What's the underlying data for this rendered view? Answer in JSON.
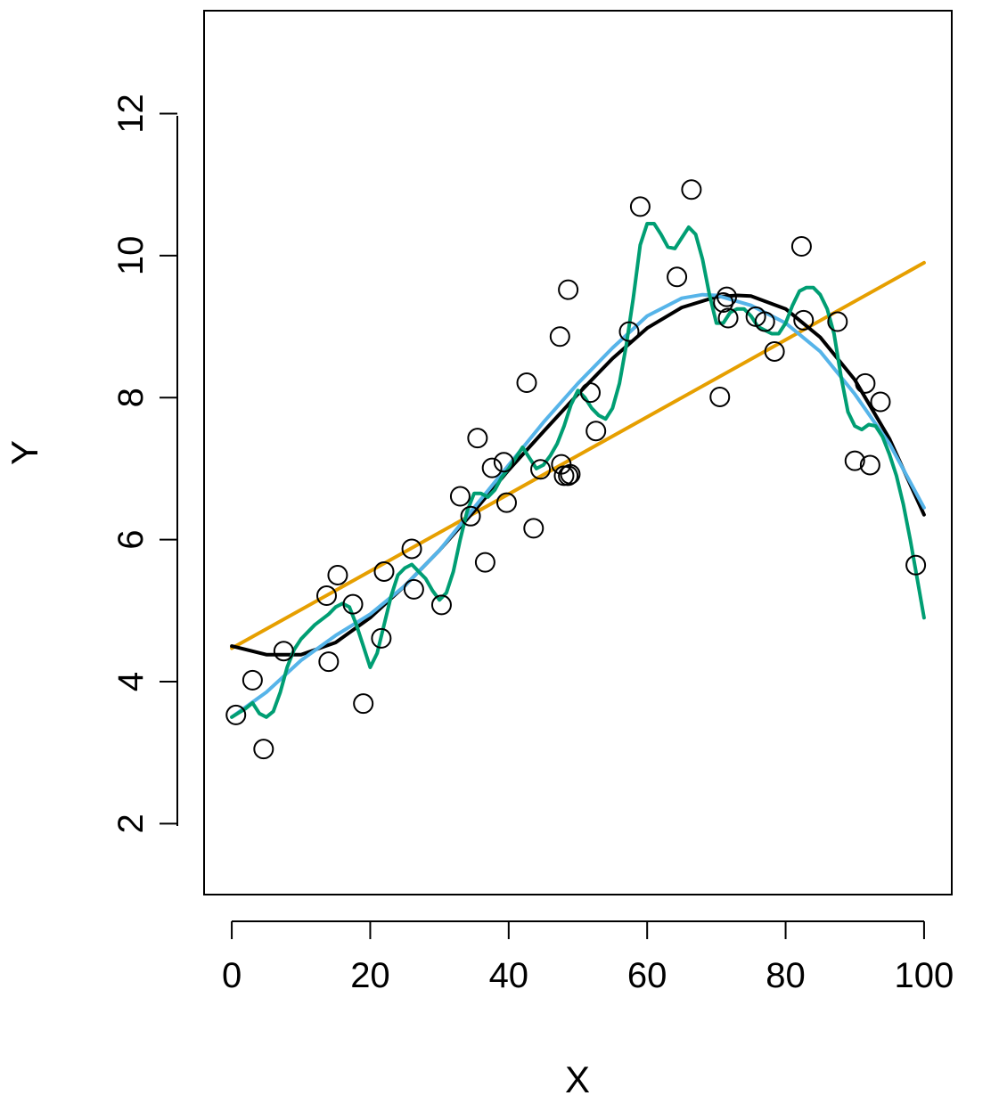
{
  "chart_data": {
    "type": "scatter",
    "title": "",
    "xlabel": "X",
    "ylabel": "Y",
    "xlim": [
      -4,
      104
    ],
    "ylim": [
      1,
      13.45
    ],
    "x_ticks": [
      0,
      20,
      40,
      60,
      80,
      100
    ],
    "x_tick_labels": [
      "0",
      "20",
      "40",
      "60",
      "80",
      "100"
    ],
    "y_ticks": [
      2,
      4,
      6,
      8,
      10,
      12
    ],
    "y_tick_labels": [
      "2",
      "4",
      "6",
      "8",
      "10",
      "12"
    ],
    "grid": false,
    "legend": "none",
    "points": {
      "x": [
        0.6,
        3.0,
        4.6,
        7.5,
        13.7,
        14.0,
        15.3,
        17.5,
        19.0,
        21.6,
        22.0,
        26.0,
        26.3,
        30.3,
        33.0,
        34.5,
        35.5,
        36.6,
        37.6,
        39.3,
        39.7,
        42.6,
        43.6,
        44.6,
        47.4,
        47.6,
        48.0,
        48.6,
        48.6,
        48.9,
        51.8,
        52.6,
        57.4,
        59.0,
        64.3,
        66.4,
        70.5,
        71.0,
        71.5,
        71.7,
        75.7,
        77.0,
        78.4,
        82.3,
        82.6,
        87.5,
        90.0,
        91.5,
        92.2,
        93.7,
        98.8
      ],
      "y": [
        3.53,
        4.02,
        3.05,
        4.43,
        5.21,
        4.28,
        5.5,
        5.09,
        3.69,
        4.61,
        5.55,
        5.87,
        5.3,
        5.08,
        6.61,
        6.33,
        7.43,
        5.68,
        7.01,
        7.09,
        6.52,
        8.21,
        6.16,
        6.99,
        8.86,
        7.06,
        6.9,
        6.9,
        9.52,
        6.92,
        8.07,
        7.53,
        8.93,
        10.69,
        9.7,
        10.93,
        8.01,
        9.34,
        9.42,
        9.12,
        9.14,
        9.07,
        8.65,
        10.13,
        9.09,
        9.07,
        7.11,
        8.2,
        7.05,
        7.94,
        5.64
      ]
    },
    "series": [
      {
        "kind": "line",
        "color": "#E69F00",
        "x": [
          0,
          100
        ],
        "y": [
          4.47,
          9.9
        ]
      },
      {
        "kind": "line",
        "color": "#000000",
        "x": [
          0,
          5,
          10,
          15,
          20,
          25,
          30,
          35,
          40,
          45,
          50,
          55,
          60,
          65,
          70,
          73,
          75,
          80,
          85,
          90,
          95,
          100
        ],
        "y": [
          4.5,
          4.38,
          4.38,
          4.55,
          4.9,
          5.35,
          5.85,
          6.4,
          6.98,
          7.52,
          8.05,
          8.55,
          8.98,
          9.27,
          9.42,
          9.44,
          9.43,
          9.25,
          8.85,
          8.25,
          7.42,
          6.35
        ]
      },
      {
        "kind": "line",
        "color": "#56B4E9",
        "x": [
          0,
          5,
          10,
          15,
          20,
          25,
          30,
          35,
          40,
          45,
          50,
          55,
          60,
          65,
          68,
          70,
          75,
          80,
          85,
          90,
          95,
          100
        ],
        "y": [
          3.5,
          3.85,
          4.3,
          4.65,
          4.95,
          5.35,
          5.85,
          6.45,
          7.05,
          7.65,
          8.2,
          8.7,
          9.15,
          9.4,
          9.45,
          9.44,
          9.3,
          9.05,
          8.65,
          8.05,
          7.35,
          6.45
        ]
      },
      {
        "kind": "line",
        "color": "#009E73",
        "x": [
          0,
          2,
          3,
          4,
          5,
          6,
          7,
          8,
          9,
          10,
          12,
          14,
          15,
          16,
          17,
          18,
          19,
          20,
          21,
          22,
          23,
          24,
          25,
          26,
          27,
          28,
          29,
          30,
          31,
          32,
          33,
          34,
          35,
          36,
          37,
          38,
          39,
          40,
          41,
          42,
          43,
          44,
          45,
          46,
          47,
          48,
          49,
          50,
          51,
          52,
          53,
          54,
          55,
          56,
          57,
          58,
          59,
          60,
          61,
          62,
          63,
          64,
          65,
          66,
          67,
          68,
          69,
          70,
          71,
          72,
          73,
          74,
          75,
          76,
          77,
          78,
          79,
          80,
          81,
          82,
          83,
          84,
          85,
          86,
          87,
          88,
          89,
          90,
          91,
          92,
          93,
          94,
          95,
          96,
          97,
          98,
          99,
          100
        ],
        "y": [
          3.5,
          3.62,
          3.7,
          3.55,
          3.5,
          3.58,
          3.85,
          4.2,
          4.45,
          4.6,
          4.8,
          4.95,
          5.05,
          5.1,
          5.05,
          4.8,
          4.5,
          4.2,
          4.4,
          4.8,
          5.2,
          5.5,
          5.6,
          5.65,
          5.55,
          5.45,
          5.28,
          5.15,
          5.25,
          5.55,
          6.0,
          6.4,
          6.65,
          6.65,
          6.6,
          6.7,
          6.88,
          7.0,
          7.15,
          7.3,
          7.15,
          7.0,
          7.05,
          7.18,
          7.35,
          7.6,
          7.9,
          8.1,
          8.0,
          7.85,
          7.75,
          7.7,
          7.85,
          8.2,
          8.75,
          9.4,
          10.15,
          10.45,
          10.45,
          10.3,
          10.12,
          10.1,
          10.25,
          10.4,
          10.3,
          9.95,
          9.45,
          9.05,
          9.05,
          9.2,
          9.25,
          9.25,
          9.15,
          9.0,
          8.95,
          8.9,
          8.9,
          9.05,
          9.3,
          9.5,
          9.55,
          9.55,
          9.45,
          9.25,
          8.9,
          8.3,
          7.8,
          7.6,
          7.55,
          7.62,
          7.6,
          7.45,
          7.2,
          6.9,
          6.5,
          6.0,
          5.45,
          4.9
        ]
      }
    ]
  }
}
